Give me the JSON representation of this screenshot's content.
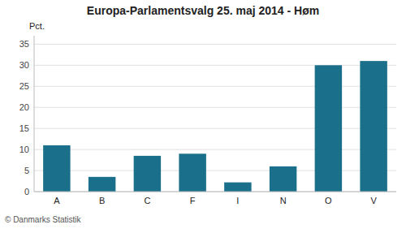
{
  "chart_data": {
    "type": "bar",
    "title": "Europa-Parlamentsvalg 25. maj 2014 - Høm",
    "categories": [
      "A",
      "B",
      "C",
      "F",
      "I",
      "N",
      "O",
      "V"
    ],
    "values": [
      11.0,
      3.5,
      8.5,
      9.0,
      2.2,
      6.0,
      30.0,
      31.0
    ],
    "color": "#1a6f8a",
    "ylabel": "Pct.",
    "ylim": [
      0,
      37
    ],
    "yticks": [
      0,
      5,
      10,
      15,
      20,
      25,
      30,
      35
    ],
    "grid": true,
    "annotations": [
      "© Danmarks Statistik"
    ]
  }
}
